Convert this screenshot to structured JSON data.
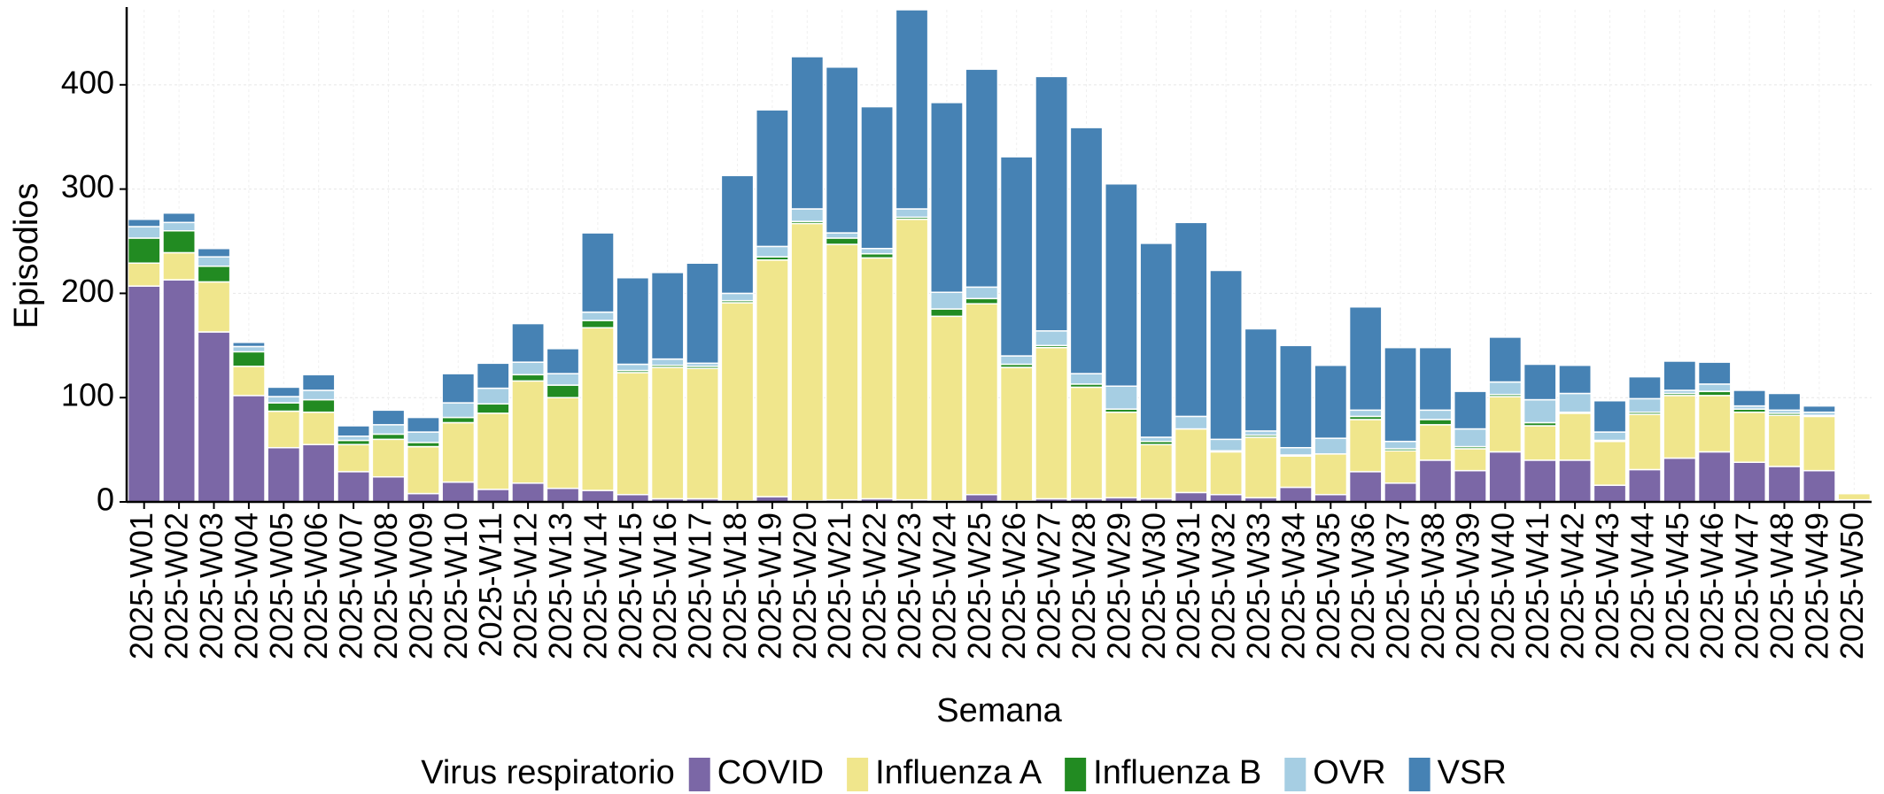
{
  "chart_data": {
    "type": "stacked_bar",
    "x_label": "Semana",
    "y_label": "Episodios",
    "legend_title": "Virus respiratorio",
    "legend_position": "bottom",
    "grid": true,
    "categories": [
      "2025-W01",
      "2025-W02",
      "2025-W03",
      "2025-W04",
      "2025-W05",
      "2025-W06",
      "2025-W07",
      "2025-W08",
      "2025-W09",
      "2025-W10",
      "2025-W11",
      "2025-W12",
      "2025-W13",
      "2025-W14",
      "2025-W15",
      "2025-W16",
      "2025-W17",
      "2025-W18",
      "2025-W19",
      "2025-W20",
      "2025-W21",
      "2025-W22",
      "2025-W23",
      "2025-W24",
      "2025-W25",
      "2025-W26",
      "2025-W27",
      "2025-W28",
      "2025-W29",
      "2025-W30",
      "2025-W31",
      "2025-W32",
      "2025-W33",
      "2025-W34",
      "2025-W35",
      "2025-W36",
      "2025-W37",
      "2025-W38",
      "2025-W39",
      "2025-W40",
      "2025-W41",
      "2025-W42",
      "2025-W43",
      "2025-W44",
      "2025-W45",
      "2025-W46",
      "2025-W47",
      "2025-W48",
      "2025-W49",
      "2025-W50"
    ],
    "series": [
      {
        "name": "COVID",
        "color": "#7b67a6",
        "values": [
          207,
          213,
          163,
          102,
          52,
          55,
          29,
          24,
          8,
          19,
          12,
          18,
          13,
          11,
          7,
          3,
          3,
          1,
          5,
          1,
          2,
          3,
          2,
          1,
          7,
          1,
          3,
          3,
          4,
          3,
          9,
          7,
          4,
          14,
          7,
          29,
          18,
          40,
          30,
          48,
          40,
          40,
          16,
          31,
          42,
          48,
          38,
          34,
          30,
          2
        ]
      },
      {
        "name": "Influenza A",
        "color": "#f0e68c",
        "values": [
          22,
          26,
          48,
          28,
          35,
          31,
          26,
          36,
          45,
          57,
          73,
          98,
          87,
          156,
          117,
          126,
          125,
          190,
          227,
          266,
          245,
          231,
          269,
          177,
          183,
          128,
          145,
          107,
          82,
          52,
          61,
          41,
          58,
          30,
          39,
          50,
          31,
          34,
          21,
          53,
          33,
          45,
          42,
          53,
          60,
          54,
          48,
          49,
          52,
          6
        ]
      },
      {
        "name": "Influenza B",
        "color": "#228b22",
        "values": [
          24,
          21,
          15,
          14,
          8,
          12,
          4,
          5,
          4,
          5,
          9,
          6,
          12,
          7,
          2,
          2,
          2,
          2,
          3,
          2,
          6,
          4,
          2,
          7,
          5,
          3,
          2,
          3,
          3,
          3,
          0,
          1,
          2,
          1,
          0,
          3,
          2,
          5,
          2,
          2,
          3,
          1,
          1,
          2,
          2,
          4,
          3,
          2,
          1,
          0
        ]
      },
      {
        "name": "OVR",
        "color": "#a6cee3",
        "values": [
          11,
          8,
          9,
          5,
          6,
          9,
          4,
          9,
          10,
          14,
          15,
          12,
          11,
          8,
          6,
          6,
          3,
          7,
          10,
          12,
          5,
          5,
          8,
          16,
          11,
          8,
          14,
          10,
          22,
          4,
          12,
          11,
          4,
          7,
          15,
          6,
          7,
          9,
          17,
          12,
          22,
          18,
          8,
          13,
          3,
          7,
          3,
          3,
          3,
          1
        ]
      },
      {
        "name": "VSR",
        "color": "#4682b4",
        "values": [
          7,
          9,
          8,
          4,
          9,
          15,
          10,
          14,
          14,
          28,
          24,
          37,
          24,
          76,
          83,
          83,
          96,
          113,
          131,
          146,
          159,
          136,
          193,
          182,
          209,
          191,
          244,
          236,
          194,
          186,
          186,
          162,
          98,
          98,
          70,
          99,
          90,
          60,
          36,
          43,
          34,
          27,
          30,
          21,
          28,
          21,
          15,
          16,
          6,
          1
        ]
      }
    ],
    "ylim": [
      0,
      472
    ],
    "yticks": [
      0,
      100,
      200,
      300,
      400
    ]
  }
}
